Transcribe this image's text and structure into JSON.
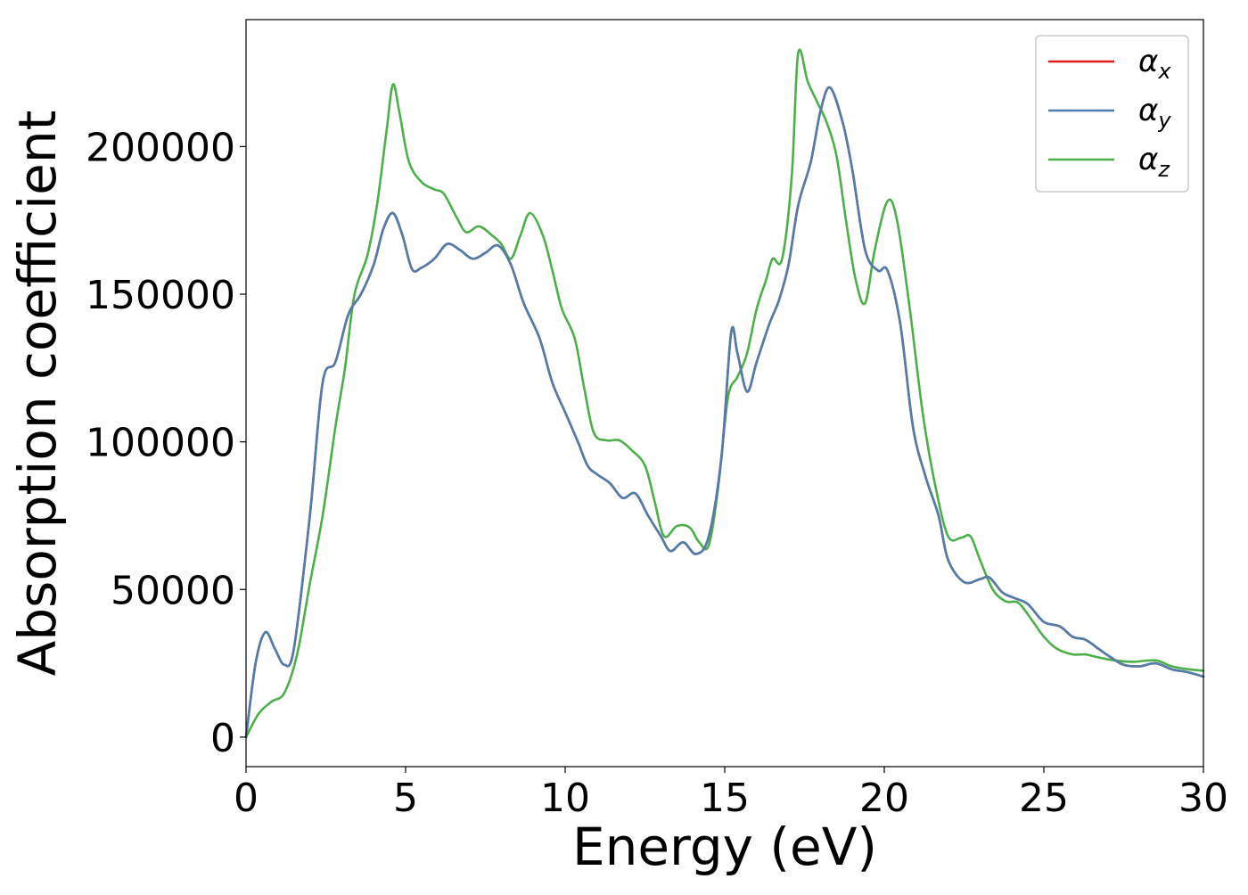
{
  "chart_data": {
    "type": "line",
    "title": "",
    "xlabel": "Energy (eV)",
    "ylabel": "Absorption coefficient",
    "xlim": [
      0,
      30
    ],
    "ylim": [
      -10000,
      243000
    ],
    "x_ticks": [
      0,
      5,
      10,
      15,
      20,
      25,
      30
    ],
    "y_ticks": [
      0,
      50000,
      100000,
      150000,
      200000
    ],
    "grid": false,
    "legend_position": "top-right",
    "series": [
      {
        "name": "α",
        "subscript": "x",
        "color": "#e41a1c",
        "points": [
          [
            0,
            0
          ],
          [
            0.3,
            25000
          ],
          [
            0.6,
            35500
          ],
          [
            0.9,
            30000
          ],
          [
            1.2,
            24500
          ],
          [
            1.5,
            30000
          ],
          [
            2.0,
            75000
          ],
          [
            2.4,
            120000
          ],
          [
            2.8,
            127000
          ],
          [
            3.2,
            143000
          ],
          [
            3.6,
            150000
          ],
          [
            4.0,
            160000
          ],
          [
            4.3,
            172000
          ],
          [
            4.6,
            177500
          ],
          [
            4.9,
            170000
          ],
          [
            5.2,
            158500
          ],
          [
            5.5,
            159000
          ],
          [
            5.9,
            162000
          ],
          [
            6.3,
            167000
          ],
          [
            6.7,
            165000
          ],
          [
            7.1,
            162000
          ],
          [
            7.5,
            164000
          ],
          [
            7.9,
            166500
          ],
          [
            8.3,
            160000
          ],
          [
            8.7,
            147000
          ],
          [
            9.2,
            135000
          ],
          [
            9.6,
            120000
          ],
          [
            10.0,
            110000
          ],
          [
            10.4,
            100000
          ],
          [
            10.7,
            92000
          ],
          [
            11.0,
            89000
          ],
          [
            11.4,
            86000
          ],
          [
            11.8,
            81000
          ],
          [
            12.2,
            82500
          ],
          [
            12.6,
            75000
          ],
          [
            13.0,
            68000
          ],
          [
            13.3,
            63000
          ],
          [
            13.7,
            66000
          ],
          [
            14.1,
            62000
          ],
          [
            14.5,
            68000
          ],
          [
            14.9,
            95000
          ],
          [
            15.2,
            137000
          ],
          [
            15.4,
            130000
          ],
          [
            15.7,
            117000
          ],
          [
            16.0,
            127000
          ],
          [
            16.4,
            140000
          ],
          [
            16.7,
            148000
          ],
          [
            17.0,
            160000
          ],
          [
            17.3,
            180000
          ],
          [
            17.7,
            195000
          ],
          [
            18.0,
            212000
          ],
          [
            18.3,
            220000
          ],
          [
            18.7,
            208000
          ],
          [
            19.0,
            192000
          ],
          [
            19.4,
            165000
          ],
          [
            19.8,
            158000
          ],
          [
            20.1,
            158000
          ],
          [
            20.5,
            140000
          ],
          [
            20.9,
            105000
          ],
          [
            21.3,
            88000
          ],
          [
            21.7,
            75000
          ],
          [
            22.0,
            60000
          ],
          [
            22.5,
            52500
          ],
          [
            23.0,
            53500
          ],
          [
            23.3,
            54000
          ],
          [
            23.7,
            49000
          ],
          [
            24.1,
            47000
          ],
          [
            24.5,
            45000
          ],
          [
            25.0,
            39000
          ],
          [
            25.5,
            37500
          ],
          [
            25.9,
            34000
          ],
          [
            26.3,
            33000
          ],
          [
            26.7,
            30000
          ],
          [
            27.1,
            27000
          ],
          [
            27.5,
            24500
          ],
          [
            28.0,
            24000
          ],
          [
            28.5,
            25000
          ],
          [
            29.0,
            23000
          ],
          [
            29.5,
            22000
          ],
          [
            30.0,
            20500
          ]
        ]
      },
      {
        "name": "α",
        "subscript": "y",
        "color": "#4e7eab",
        "points": [
          [
            0,
            0
          ],
          [
            0.3,
            25000
          ],
          [
            0.6,
            35500
          ],
          [
            0.9,
            30000
          ],
          [
            1.2,
            24500
          ],
          [
            1.5,
            30000
          ],
          [
            2.0,
            75000
          ],
          [
            2.4,
            120000
          ],
          [
            2.8,
            127000
          ],
          [
            3.2,
            143000
          ],
          [
            3.6,
            150000
          ],
          [
            4.0,
            160000
          ],
          [
            4.3,
            172000
          ],
          [
            4.6,
            177500
          ],
          [
            4.9,
            170000
          ],
          [
            5.2,
            158500
          ],
          [
            5.5,
            159000
          ],
          [
            5.9,
            162000
          ],
          [
            6.3,
            167000
          ],
          [
            6.7,
            165000
          ],
          [
            7.1,
            162000
          ],
          [
            7.5,
            164000
          ],
          [
            7.9,
            166500
          ],
          [
            8.3,
            160000
          ],
          [
            8.7,
            147000
          ],
          [
            9.2,
            135000
          ],
          [
            9.6,
            120000
          ],
          [
            10.0,
            110000
          ],
          [
            10.4,
            100000
          ],
          [
            10.7,
            92000
          ],
          [
            11.0,
            89000
          ],
          [
            11.4,
            86000
          ],
          [
            11.8,
            81000
          ],
          [
            12.2,
            82500
          ],
          [
            12.6,
            75000
          ],
          [
            13.0,
            68000
          ],
          [
            13.3,
            63000
          ],
          [
            13.7,
            66000
          ],
          [
            14.1,
            62000
          ],
          [
            14.5,
            68000
          ],
          [
            14.9,
            95000
          ],
          [
            15.2,
            137000
          ],
          [
            15.4,
            130000
          ],
          [
            15.7,
            117000
          ],
          [
            16.0,
            127000
          ],
          [
            16.4,
            140000
          ],
          [
            16.7,
            148000
          ],
          [
            17.0,
            160000
          ],
          [
            17.3,
            180000
          ],
          [
            17.7,
            195000
          ],
          [
            18.0,
            212000
          ],
          [
            18.3,
            220000
          ],
          [
            18.7,
            208000
          ],
          [
            19.0,
            192000
          ],
          [
            19.4,
            165000
          ],
          [
            19.8,
            158000
          ],
          [
            20.1,
            158000
          ],
          [
            20.5,
            140000
          ],
          [
            20.9,
            105000
          ],
          [
            21.3,
            88000
          ],
          [
            21.7,
            75000
          ],
          [
            22.0,
            60000
          ],
          [
            22.5,
            52500
          ],
          [
            23.0,
            53500
          ],
          [
            23.3,
            54000
          ],
          [
            23.7,
            49000
          ],
          [
            24.1,
            47000
          ],
          [
            24.5,
            45000
          ],
          [
            25.0,
            39000
          ],
          [
            25.5,
            37500
          ],
          [
            25.9,
            34000
          ],
          [
            26.3,
            33000
          ],
          [
            26.7,
            30000
          ],
          [
            27.1,
            27000
          ],
          [
            27.5,
            24500
          ],
          [
            28.0,
            24000
          ],
          [
            28.5,
            25000
          ],
          [
            29.0,
            23000
          ],
          [
            29.5,
            22000
          ],
          [
            30.0,
            20500
          ]
        ]
      },
      {
        "name": "α",
        "subscript": "z",
        "color": "#4daf4a",
        "points": [
          [
            0,
            0
          ],
          [
            0.4,
            8000
          ],
          [
            0.8,
            12000
          ],
          [
            1.2,
            15000
          ],
          [
            1.6,
            28000
          ],
          [
            2.0,
            52000
          ],
          [
            2.4,
            75000
          ],
          [
            2.8,
            105000
          ],
          [
            3.1,
            125000
          ],
          [
            3.4,
            150000
          ],
          [
            3.8,
            163000
          ],
          [
            4.1,
            180000
          ],
          [
            4.4,
            205000
          ],
          [
            4.6,
            221000
          ],
          [
            4.8,
            212000
          ],
          [
            5.1,
            195000
          ],
          [
            5.5,
            188000
          ],
          [
            5.9,
            185500
          ],
          [
            6.2,
            184000
          ],
          [
            6.6,
            176000
          ],
          [
            6.9,
            171000
          ],
          [
            7.3,
            173000
          ],
          [
            7.7,
            170000
          ],
          [
            8.0,
            167000
          ],
          [
            8.3,
            162000
          ],
          [
            8.6,
            170000
          ],
          [
            8.9,
            177500
          ],
          [
            9.3,
            170000
          ],
          [
            9.6,
            158000
          ],
          [
            9.9,
            145000
          ],
          [
            10.3,
            135000
          ],
          [
            10.6,
            118000
          ],
          [
            10.9,
            103000
          ],
          [
            11.3,
            100500
          ],
          [
            11.7,
            100500
          ],
          [
            12.1,
            97000
          ],
          [
            12.5,
            92000
          ],
          [
            12.8,
            80000
          ],
          [
            13.1,
            68000
          ],
          [
            13.5,
            71500
          ],
          [
            13.9,
            71000
          ],
          [
            14.2,
            66000
          ],
          [
            14.5,
            65000
          ],
          [
            14.8,
            85000
          ],
          [
            15.1,
            115000
          ],
          [
            15.4,
            122000
          ],
          [
            15.7,
            130000
          ],
          [
            16.0,
            145000
          ],
          [
            16.3,
            155000
          ],
          [
            16.5,
            162000
          ],
          [
            16.8,
            162000
          ],
          [
            17.1,
            190000
          ],
          [
            17.3,
            231500
          ],
          [
            17.6,
            222000
          ],
          [
            17.9,
            215000
          ],
          [
            18.2,
            208000
          ],
          [
            18.5,
            197000
          ],
          [
            18.8,
            175000
          ],
          [
            19.1,
            155000
          ],
          [
            19.4,
            147000
          ],
          [
            19.7,
            165000
          ],
          [
            20.1,
            181500
          ],
          [
            20.4,
            175000
          ],
          [
            20.8,
            145000
          ],
          [
            21.2,
            110000
          ],
          [
            21.6,
            85000
          ],
          [
            22.0,
            68000
          ],
          [
            22.4,
            67500
          ],
          [
            22.7,
            68000
          ],
          [
            23.0,
            60000
          ],
          [
            23.4,
            50000
          ],
          [
            23.8,
            46000
          ],
          [
            24.2,
            45500
          ],
          [
            24.6,
            40000
          ],
          [
            25.0,
            34000
          ],
          [
            25.4,
            30000
          ],
          [
            25.9,
            28000
          ],
          [
            26.3,
            28000
          ],
          [
            26.7,
            27000
          ],
          [
            27.2,
            26000
          ],
          [
            27.8,
            25500
          ],
          [
            28.5,
            26000
          ],
          [
            29.0,
            24000
          ],
          [
            29.5,
            23000
          ],
          [
            30.0,
            22500
          ]
        ]
      }
    ]
  }
}
